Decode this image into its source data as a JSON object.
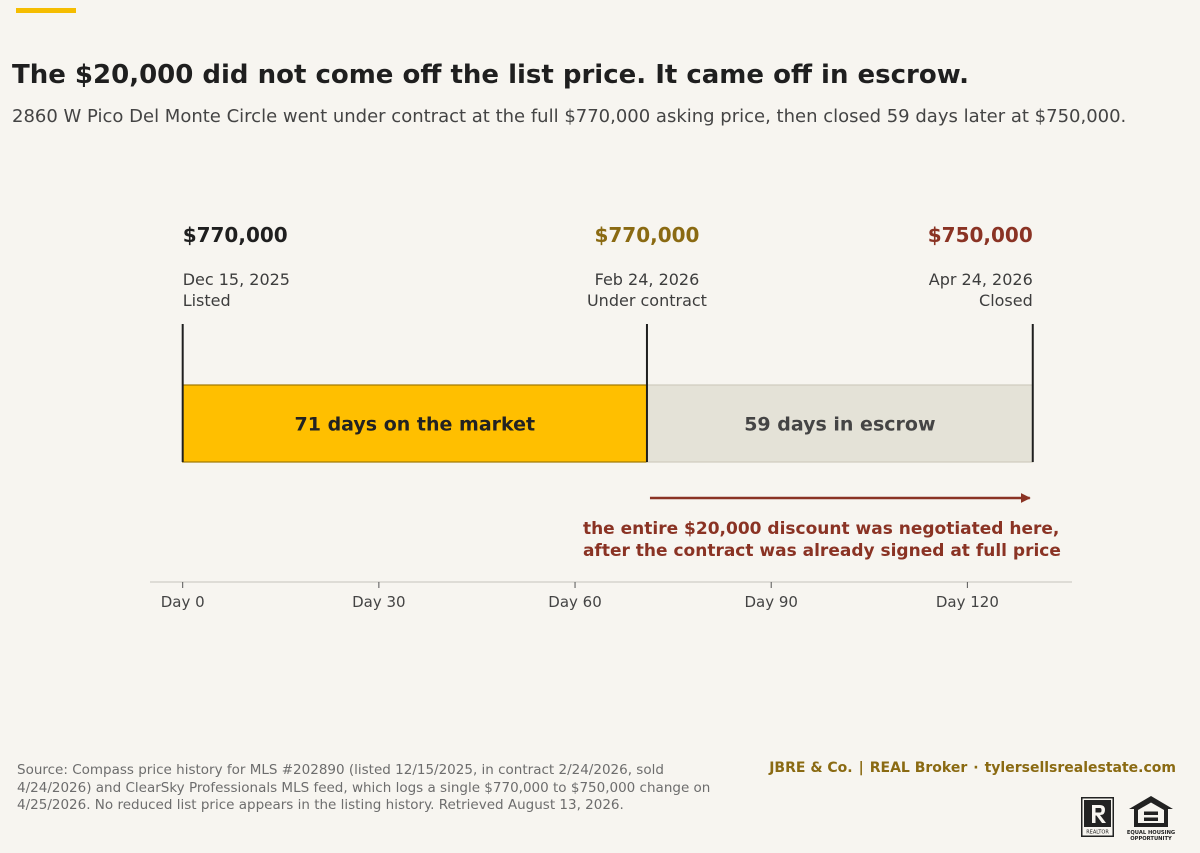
{
  "page": {
    "title": "The $20,000 did not come off the list price. It came off in escrow.",
    "subtitle": "2860 W Pico Del Monte Circle went under contract at the full $770,000 asking price, then closed 59 days later at $750,000."
  },
  "chart_data": {
    "type": "timeline",
    "x_unit": "days",
    "xlim": [
      -5,
      136
    ],
    "ticks": [
      {
        "value": 0,
        "label": "Day 0"
      },
      {
        "value": 30,
        "label": "Day 30"
      },
      {
        "value": 60,
        "label": "Day 60"
      },
      {
        "value": 90,
        "label": "Day 90"
      },
      {
        "value": 120,
        "label": "Day 120"
      }
    ],
    "milestones": [
      {
        "day": 0,
        "price": "$770,000",
        "date": "Dec 15, 2025",
        "label": "Listed",
        "color": "#1f1f1f",
        "align": "start"
      },
      {
        "day": 71,
        "price": "$770,000",
        "date": "Feb 24, 2026",
        "label": "Under contract",
        "color": "#8a6a12",
        "align": "middle"
      },
      {
        "day": 130,
        "price": "$750,000",
        "date": "Apr 24, 2026",
        "label": "Closed",
        "color": "#8a3324",
        "align": "end"
      }
    ],
    "segments": [
      {
        "start": 0,
        "end": 71,
        "label": "71 days on the market",
        "fill": "#ffbf00",
        "stroke": "#a07800",
        "text_color": "#222222"
      },
      {
        "start": 71,
        "end": 130,
        "label": "59 days in escrow",
        "fill": "#e4e2d7",
        "stroke": "#cfccbf",
        "text_color": "#444444"
      }
    ],
    "annotation": {
      "start": 71,
      "end": 130,
      "lines": [
        "the entire $20,000 discount was negotiated here,",
        "after the contract was already signed at full price"
      ],
      "color": "#8a3324"
    }
  },
  "footer": {
    "source": "Source: Compass price history for MLS #202890 (listed 12/15/2025, in contract 2/24/2026, sold 4/24/2026) and ClearSky Professionals MLS feed, which logs a single $770,000 to $750,000 change on 4/25/2026. No reduced list price appears in the listing history. Retrieved August 13, 2026.",
    "brand": "JBRE & Co.",
    "broker": "REAL Broker",
    "website": "tylersellsrealestate.com",
    "realtor_mark": "REALTOR",
    "equal_housing": [
      "EQUAL HOUSING",
      "OPPORTUNITY"
    ]
  },
  "colors": {
    "accent": "#f5bd00",
    "brand": "#8a6a12",
    "annotation": "#8a3324"
  }
}
